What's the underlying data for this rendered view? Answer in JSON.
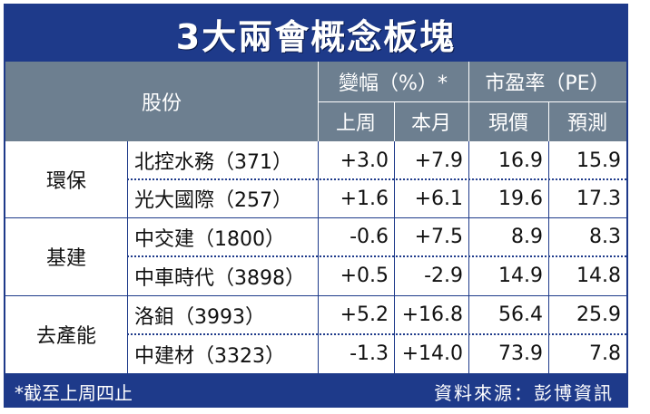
{
  "title": "3大兩會概念板塊",
  "header": {
    "stock": "股份",
    "change_group": "變幅（%）*",
    "pe_group": "市盈率（PE）",
    "last_week": "上周",
    "this_month": "本月",
    "current": "現價",
    "forecast": "預測"
  },
  "groups": [
    {
      "name": "環保",
      "rows": [
        {
          "stock": "北控水務（371）",
          "last_week": "+3.0",
          "this_month": "+7.9",
          "current": "16.9",
          "forecast": "15.9"
        },
        {
          "stock": "光大國際（257）",
          "last_week": "+1.6",
          "this_month": "+6.1",
          "current": "19.6",
          "forecast": "17.3"
        }
      ]
    },
    {
      "name": "基建",
      "rows": [
        {
          "stock": "中交建（1800）",
          "last_week": "-0.6",
          "this_month": "+7.5",
          "current": "8.9",
          "forecast": "8.3"
        },
        {
          "stock": "中車時代（3898）",
          "last_week": "+0.5",
          "this_month": "-2.9",
          "current": "14.9",
          "forecast": "14.8"
        }
      ]
    },
    {
      "name": "去產能",
      "rows": [
        {
          "stock": "洛鉬（3993）",
          "last_week": "+5.2",
          "this_month": "+16.8",
          "current": "56.4",
          "forecast": "25.9"
        },
        {
          "stock": "中建材（3323）",
          "last_week": "-1.3",
          "this_month": "+14.0",
          "current": "73.9",
          "forecast": "7.8"
        }
      ]
    }
  ],
  "footer": {
    "note": "*截至上周四止",
    "source": "資料來源：彭博資訊"
  },
  "colors": {
    "navy": "#1e3a8a",
    "header_gray": "#6d7f90"
  }
}
